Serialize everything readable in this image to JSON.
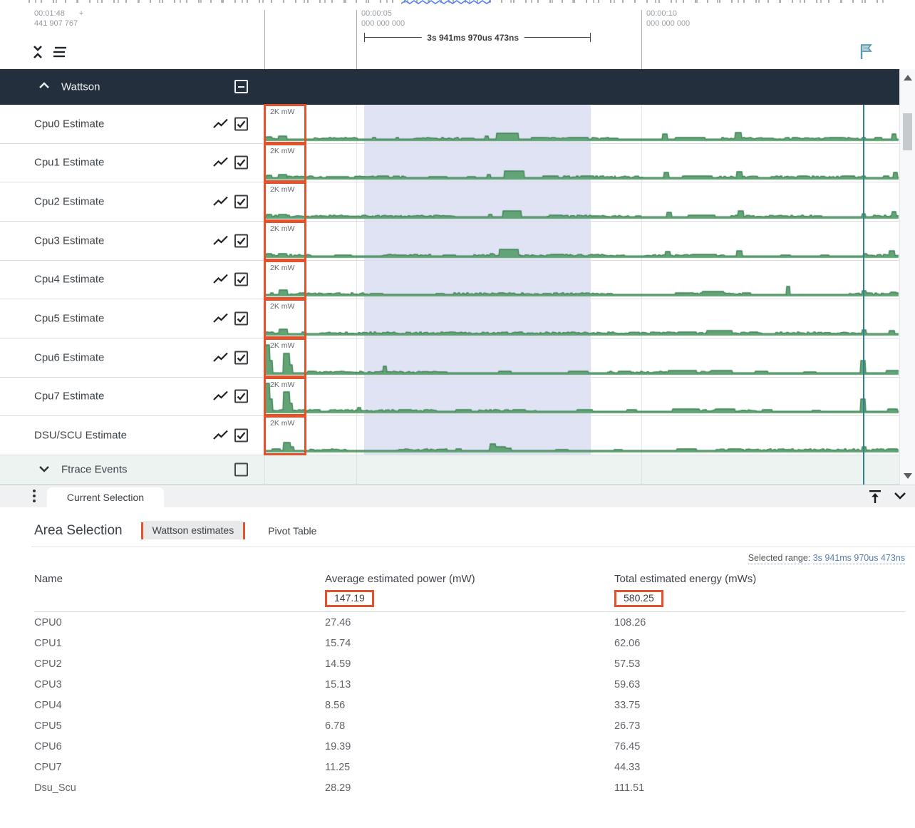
{
  "colors": {
    "accent_orange": "#e2532d",
    "chart_fill": "#63a476",
    "chart_stroke": "#3e8055",
    "cursor_teal": "#2d808f",
    "selection_band": "#e0e3f4",
    "group_header_bg": "#242f3d"
  },
  "ruler": {
    "origin_time": "00:01:48",
    "origin_plus": "+",
    "origin_frac": "441 907 767",
    "ticks": [
      {
        "time": "00:00:05",
        "frac": "000 000 000"
      },
      {
        "time": "00:00:10",
        "frac": "000 000 000"
      }
    ],
    "measurement_label": "3s 941ms 970us 473ns"
  },
  "group_header": {
    "title": "Wattson"
  },
  "tracks": [
    {
      "name": "Cpu0 Estimate",
      "unit": "2K mW",
      "checked": true,
      "spikes": [
        [
          374,
          8,
          4
        ],
        [
          391,
          12,
          5
        ],
        [
          452,
          36,
          2
        ],
        [
          523,
          5,
          3
        ],
        [
          556,
          4,
          3
        ],
        [
          584,
          30,
          2
        ],
        [
          648,
          18,
          2
        ],
        [
          681,
          5,
          5
        ],
        [
          697,
          31,
          9
        ],
        [
          746,
          18,
          3
        ],
        [
          798,
          28,
          3
        ],
        [
          856,
          12,
          2
        ],
        [
          930,
          7,
          8
        ],
        [
          948,
          42,
          3
        ],
        [
          1032,
          9,
          10
        ],
        [
          1068,
          18,
          2
        ],
        [
          1112,
          8,
          3
        ],
        [
          1164,
          20,
          3
        ],
        [
          1210,
          5,
          3
        ],
        [
          1228,
          10,
          3
        ],
        [
          1252,
          6,
          8
        ]
      ]
    },
    {
      "name": "Cpu1 Estimate",
      "unit": "2K mW",
      "checked": true,
      "spikes": [
        [
          374,
          8,
          4
        ],
        [
          391,
          12,
          5
        ],
        [
          458,
          32,
          2
        ],
        [
          530,
          16,
          3
        ],
        [
          602,
          26,
          2
        ],
        [
          656,
          12,
          2
        ],
        [
          684,
          5,
          5
        ],
        [
          708,
          28,
          10
        ],
        [
          762,
          22,
          3
        ],
        [
          816,
          18,
          3
        ],
        [
          872,
          12,
          2
        ],
        [
          932,
          7,
          8
        ],
        [
          958,
          42,
          3
        ],
        [
          1034,
          8,
          9
        ],
        [
          1082,
          16,
          2
        ],
        [
          1122,
          12,
          3
        ],
        [
          1182,
          18,
          3
        ],
        [
          1210,
          5,
          3
        ],
        [
          1240,
          8,
          3
        ],
        [
          1254,
          6,
          8
        ]
      ]
    },
    {
      "name": "Cpu2 Estimate",
      "unit": "2K mW",
      "checked": true,
      "spikes": [
        [
          374,
          8,
          4
        ],
        [
          391,
          12,
          4
        ],
        [
          462,
          28,
          2
        ],
        [
          540,
          12,
          2
        ],
        [
          612,
          22,
          2
        ],
        [
          686,
          5,
          4
        ],
        [
          706,
          26,
          9
        ],
        [
          772,
          18,
          3
        ],
        [
          830,
          12,
          2
        ],
        [
          892,
          8,
          2
        ],
        [
          936,
          7,
          7
        ],
        [
          966,
          38,
          3
        ],
        [
          1036,
          8,
          9
        ],
        [
          1092,
          14,
          2
        ],
        [
          1142,
          12,
          2
        ],
        [
          1210,
          5,
          5
        ],
        [
          1252,
          6,
          8
        ]
      ]
    },
    {
      "name": "Cpu3 Estimate",
      "unit": "2K mW",
      "checked": true,
      "spikes": [
        [
          374,
          8,
          4
        ],
        [
          391,
          12,
          4
        ],
        [
          470,
          24,
          2
        ],
        [
          556,
          12,
          2
        ],
        [
          622,
          18,
          2
        ],
        [
          688,
          5,
          4
        ],
        [
          701,
          27,
          10
        ],
        [
          776,
          16,
          3
        ],
        [
          840,
          10,
          2
        ],
        [
          934,
          7,
          7
        ],
        [
          972,
          34,
          3
        ],
        [
          1034,
          8,
          8
        ],
        [
          1096,
          14,
          2
        ],
        [
          1152,
          12,
          2
        ],
        [
          1212,
          5,
          4
        ],
        [
          1248,
          8,
          8
        ]
      ]
    },
    {
      "name": "Cpu4 Estimate",
      "unit": "2K mW",
      "checked": true,
      "spikes": [
        [
          380,
          4,
          3
        ],
        [
          392,
          12,
          7
        ],
        [
          424,
          6,
          3
        ],
        [
          520,
          18,
          2
        ],
        [
          612,
          12,
          2
        ],
        [
          700,
          8,
          3
        ],
        [
          762,
          12,
          2
        ],
        [
          852,
          8,
          2
        ],
        [
          948,
          26,
          3
        ],
        [
          986,
          30,
          5
        ],
        [
          1042,
          12,
          3
        ],
        [
          1104,
          5,
          12
        ],
        [
          1210,
          6,
          6
        ],
        [
          1250,
          8,
          4
        ]
      ]
    },
    {
      "name": "Cpu5 Estimate",
      "unit": "2K mW",
      "checked": true,
      "spikes": [
        [
          380,
          4,
          3
        ],
        [
          392,
          12,
          7
        ],
        [
          424,
          6,
          3
        ],
        [
          542,
          14,
          2
        ],
        [
          640,
          12,
          2
        ],
        [
          722,
          8,
          2
        ],
        [
          802,
          8,
          2
        ],
        [
          900,
          8,
          2
        ],
        [
          952,
          26,
          3
        ],
        [
          992,
          36,
          5
        ],
        [
          1052,
          12,
          3
        ],
        [
          1210,
          6,
          6
        ],
        [
          1248,
          8,
          5
        ]
      ]
    },
    {
      "name": "Cpu6 Estimate",
      "unit": "2K mW",
      "checked": true,
      "spikes": [
        [
          372,
          7,
          40
        ],
        [
          379,
          4,
          18
        ],
        [
          398,
          9,
          28
        ],
        [
          407,
          4,
          12
        ],
        [
          432,
          10,
          3
        ],
        [
          472,
          18,
          2
        ],
        [
          538,
          5,
          10
        ],
        [
          600,
          28,
          2
        ],
        [
          700,
          18,
          3
        ],
        [
          798,
          28,
          3
        ],
        [
          868,
          18,
          3
        ],
        [
          938,
          40,
          4
        ],
        [
          998,
          30,
          4
        ],
        [
          1060,
          18,
          3
        ],
        [
          1128,
          18,
          2
        ],
        [
          1208,
          7,
          18
        ],
        [
          1244,
          18,
          4
        ]
      ]
    },
    {
      "name": "Cpu7 Estimate",
      "unit": "2K mW",
      "checked": true,
      "spikes": [
        [
          372,
          7,
          40
        ],
        [
          379,
          4,
          18
        ],
        [
          398,
          9,
          28
        ],
        [
          407,
          4,
          12
        ],
        [
          440,
          10,
          3
        ],
        [
          502,
          5,
          6
        ],
        [
          560,
          18,
          3
        ],
        [
          640,
          22,
          3
        ],
        [
          720,
          18,
          3
        ],
        [
          810,
          22,
          3
        ],
        [
          880,
          14,
          3
        ],
        [
          944,
          38,
          4
        ],
        [
          1004,
          28,
          4
        ],
        [
          1070,
          14,
          3
        ],
        [
          1140,
          12,
          2
        ],
        [
          1208,
          7,
          18
        ],
        [
          1246,
          14,
          4
        ]
      ]
    },
    {
      "name": "DSU/SCU Estimate",
      "unit": "2K mW",
      "checked": true,
      "spikes": [
        [
          382,
          12,
          3
        ],
        [
          398,
          10,
          12
        ],
        [
          408,
          5,
          6
        ],
        [
          452,
          18,
          2
        ],
        [
          560,
          12,
          2
        ],
        [
          640,
          8,
          3
        ],
        [
          688,
          8,
          10
        ],
        [
          696,
          14,
          6
        ],
        [
          710,
          8,
          4
        ],
        [
          780,
          18,
          2
        ],
        [
          862,
          12,
          2
        ],
        [
          950,
          28,
          3
        ],
        [
          1022,
          18,
          3
        ],
        [
          1100,
          12,
          2
        ],
        [
          1210,
          6,
          6
        ],
        [
          1246,
          14,
          3
        ]
      ]
    }
  ],
  "ftrace": {
    "label": "Ftrace Events",
    "checked": false
  },
  "tab_bar": {
    "current_tab": "Current Selection"
  },
  "bottom": {
    "title": "Area Selection",
    "tab_wattson": "Wattson estimates",
    "tab_pivot": "Pivot Table",
    "selected_range_label": "Selected range:",
    "selected_range_value": "3s 941ms 970us 473ns",
    "table": {
      "columns": [
        "Name",
        "Average estimated power (mW)",
        "Total estimated energy (mWs)"
      ],
      "totals": {
        "avg": "147.19",
        "total": "580.25"
      },
      "rows": [
        [
          "CPU0",
          "27.46",
          "108.26"
        ],
        [
          "CPU1",
          "15.74",
          "62.06"
        ],
        [
          "CPU2",
          "14.59",
          "57.53"
        ],
        [
          "CPU3",
          "15.13",
          "59.63"
        ],
        [
          "CPU4",
          "8.56",
          "33.75"
        ],
        [
          "CPU5",
          "6.78",
          "26.73"
        ],
        [
          "CPU6",
          "19.39",
          "76.45"
        ],
        [
          "CPU7",
          "11.25",
          "44.33"
        ],
        [
          "Dsu_Scu",
          "28.29",
          "111.51"
        ]
      ]
    }
  }
}
